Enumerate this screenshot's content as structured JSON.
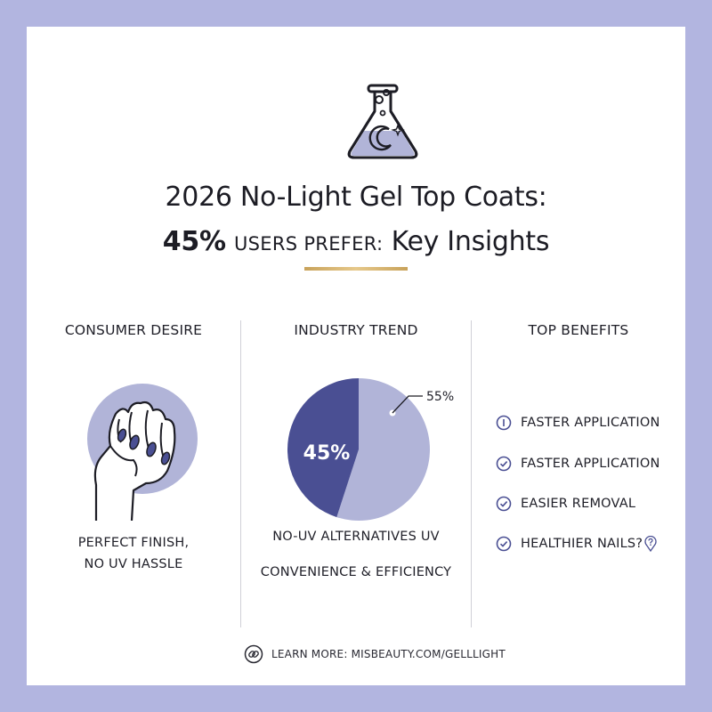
{
  "title": {
    "line1": "2026 No-Light Gel Top Coats:",
    "line2_pct": "45%",
    "line2_mid": "USERS PREFER:",
    "line2_end": "Key Insights"
  },
  "columns": {
    "consumer": {
      "heading": "CONSUMER DESIRE",
      "caption_line1": "PERFECT FINISH,",
      "caption_line2": "NO UV HASSLE"
    },
    "trend": {
      "heading": "INDUSTRY TREND",
      "caption_line1": "NO-UV ALTERNATIVES UV",
      "caption_line2": "CONVENIENCE & EFFICIENCY"
    },
    "benefits": {
      "heading": "TOP BENEFITS",
      "items": [
        {
          "label": "FASTER APPLICATION",
          "icon": "info-circle-icon"
        },
        {
          "label": "FASTER APPLICATION",
          "icon": "check-circle-icon"
        },
        {
          "label": "EASIER REMOVAL",
          "icon": "check-circle-icon"
        },
        {
          "label": "HEALTHIER NAILS?",
          "icon": "check-circle-icon",
          "suffix_icon": "question-pin-icon"
        }
      ]
    }
  },
  "chart_data": {
    "type": "pie",
    "slices": [
      {
        "label": "45%",
        "value": 45,
        "color": "#4a4f93"
      },
      {
        "label": "55%",
        "value": 55,
        "color": "#b1b4d8"
      }
    ]
  },
  "footer": {
    "label": "LEARN MORE: MISBEAUTY.COM/GELLLIGHT",
    "icon": "link-icon"
  },
  "colors": {
    "frame": "#b2b5e0",
    "accent_dark": "#4a4f93",
    "accent_light": "#b1b4d8",
    "gold": "#c8a25a"
  }
}
